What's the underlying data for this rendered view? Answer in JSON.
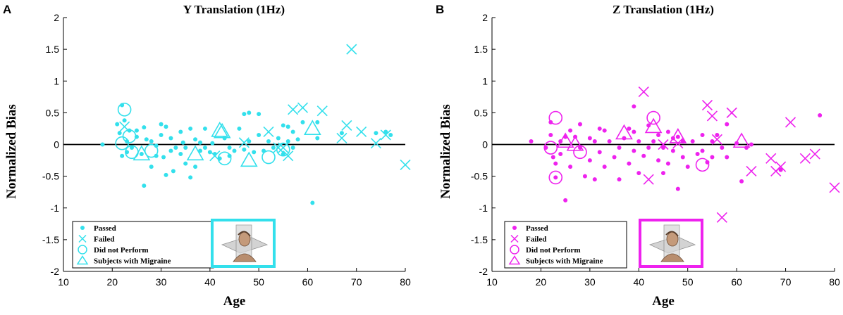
{
  "chart_data": [
    {
      "panel": "A",
      "type": "scatter",
      "title": "Y Translation (1Hz)",
      "xlabel": "Age",
      "ylabel": "Normalized Bias",
      "xlim": [
        10,
        80
      ],
      "ylim": [
        -2,
        2
      ],
      "xticks": [
        10,
        20,
        30,
        40,
        50,
        60,
        70,
        80
      ],
      "yticks": [
        2,
        1.5,
        1,
        0.5,
        0,
        -0.5,
        -1,
        -1.5,
        -2
      ],
      "color": "#33e0ec",
      "inset_image": "subject-head-axes-illustration",
      "legend": [
        "Passed",
        "Failed",
        "Did not Perform",
        "Subjects with Migraine"
      ],
      "series": [
        {
          "name": "Passed",
          "marker": "dot",
          "points": [
            [
              18,
              0.0
            ],
            [
              21,
              0.32
            ],
            [
              21.5,
              0.18
            ],
            [
              22,
              0.62
            ],
            [
              22,
              -0.18
            ],
            [
              22.5,
              0.38
            ],
            [
              23,
              0.05
            ],
            [
              23,
              -0.12
            ],
            [
              23.5,
              0.22
            ],
            [
              24,
              -0.05
            ],
            [
              25,
              0.22
            ],
            [
              25,
              0.12
            ],
            [
              26,
              -0.15
            ],
            [
              26.5,
              0.27
            ],
            [
              26.5,
              -0.65
            ],
            [
              27,
              0.08
            ],
            [
              28,
              -0.35
            ],
            [
              28,
              0.05
            ],
            [
              29,
              -0.02
            ],
            [
              29,
              -0.18
            ],
            [
              30,
              0.32
            ],
            [
              30,
              0.15
            ],
            [
              30.5,
              -0.2
            ],
            [
              31,
              -0.48
            ],
            [
              31,
              0.28
            ],
            [
              32,
              -0.1
            ],
            [
              32,
              0.1
            ],
            [
              32.5,
              -0.42
            ],
            [
              33,
              -0.05
            ],
            [
              34,
              0.2
            ],
            [
              34,
              -0.15
            ],
            [
              34.5,
              0.03
            ],
            [
              35,
              -0.05
            ],
            [
              35,
              -0.3
            ],
            [
              36,
              0.25
            ],
            [
              36,
              -0.52
            ],
            [
              37,
              0.08
            ],
            [
              37,
              -0.35
            ],
            [
              38,
              0.03
            ],
            [
              38,
              -0.1
            ],
            [
              39,
              -0.05
            ],
            [
              39,
              0.25
            ],
            [
              40,
              -0.12
            ],
            [
              40.5,
              0.02
            ],
            [
              41,
              -0.15
            ],
            [
              42,
              -0.22
            ],
            [
              43,
              0.1
            ],
            [
              44,
              -0.05
            ],
            [
              44,
              -0.18
            ],
            [
              45,
              -0.1
            ],
            [
              46,
              0.25
            ],
            [
              47,
              0.48
            ],
            [
              47,
              -0.08
            ],
            [
              48,
              0.05
            ],
            [
              48,
              0.5
            ],
            [
              49,
              -0.12
            ],
            [
              50,
              0.48
            ],
            [
              50,
              0.15
            ],
            [
              51,
              -0.1
            ],
            [
              52,
              0.05
            ],
            [
              53,
              -0.05
            ],
            [
              54,
              0.1
            ],
            [
              55,
              0.3
            ],
            [
              55,
              -0.15
            ],
            [
              56,
              0.28
            ],
            [
              56,
              0.05
            ],
            [
              57,
              0.2
            ],
            [
              57,
              -0.05
            ],
            [
              58,
              0.08
            ],
            [
              59,
              0.35
            ],
            [
              61,
              -0.92
            ],
            [
              62,
              0.1
            ],
            [
              62,
              0.35
            ],
            [
              67,
              0.18
            ],
            [
              74,
              0.18
            ],
            [
              76,
              0.2
            ],
            [
              77,
              0.15
            ]
          ]
        },
        {
          "name": "Failed",
          "marker": "x",
          "points": [
            [
              22.5,
              0.28
            ],
            [
              41,
              -0.18
            ],
            [
              47,
              0.03
            ],
            [
              52,
              0.2
            ],
            [
              54,
              -0.05
            ],
            [
              55,
              -0.05
            ],
            [
              56,
              -0.18
            ],
            [
              57,
              0.55
            ],
            [
              59,
              0.58
            ],
            [
              63,
              0.53
            ],
            [
              67,
              0.1
            ],
            [
              68,
              0.3
            ],
            [
              69,
              1.5
            ],
            [
              71,
              0.2
            ],
            [
              74,
              0.02
            ],
            [
              76,
              0.15
            ],
            [
              80,
              -0.32
            ]
          ]
        },
        {
          "name": "Did not Perform",
          "marker": "circle",
          "points": [
            [
              22.5,
              0.55
            ],
            [
              22,
              0.02
            ],
            [
              23.5,
              0.13
            ],
            [
              24,
              -0.12
            ],
            [
              28,
              -0.1
            ],
            [
              43,
              -0.22
            ],
            [
              52,
              -0.2
            ],
            [
              55,
              -0.08
            ]
          ]
        },
        {
          "name": "Subjects with Migraine",
          "marker": "triangle",
          "points": [
            [
              26,
              -0.15
            ],
            [
              37,
              -0.15
            ],
            [
              42,
              0.22
            ],
            [
              42.5,
              0.2
            ],
            [
              48,
              -0.25
            ],
            [
              61,
              0.25
            ]
          ]
        }
      ]
    },
    {
      "panel": "B",
      "type": "scatter",
      "title": "Z Translation (1Hz)",
      "xlabel": "Age",
      "ylabel": "Normalized Bias",
      "xlim": [
        10,
        80
      ],
      "ylim": [
        -2,
        2
      ],
      "xticks": [
        10,
        20,
        30,
        40,
        50,
        60,
        70,
        80
      ],
      "yticks": [
        2,
        1.5,
        1,
        0.5,
        0,
        -0.5,
        -1,
        -1.5,
        -2
      ],
      "color": "#ee22ee",
      "inset_image": "subject-head-axes-illustration",
      "legend": [
        "Passed",
        "Failed",
        "Did not Perform",
        "Subjects with Migraine"
      ],
      "series": [
        {
          "name": "Passed",
          "marker": "dot",
          "points": [
            [
              18,
              0.05
            ],
            [
              21,
              -0.05
            ],
            [
              22,
              0.35
            ],
            [
              22,
              0.15
            ],
            [
              22.5,
              -0.2
            ],
            [
              23,
              -0.3
            ],
            [
              23,
              -0.52
            ],
            [
              24,
              0.05
            ],
            [
              24,
              -0.15
            ],
            [
              25,
              -0.88
            ],
            [
              25,
              0.12
            ],
            [
              26,
              -0.35
            ],
            [
              26,
              0.22
            ],
            [
              27,
              0.12
            ],
            [
              28,
              0.32
            ],
            [
              28,
              -0.05
            ],
            [
              29,
              -0.5
            ],
            [
              30,
              0.1
            ],
            [
              30,
              -0.25
            ],
            [
              31,
              0.05
            ],
            [
              31,
              -0.55
            ],
            [
              32,
              -0.12
            ],
            [
              32,
              0.25
            ],
            [
              33,
              0.22
            ],
            [
              33,
              -0.35
            ],
            [
              34,
              0.05
            ],
            [
              35,
              -0.2
            ],
            [
              36,
              -0.05
            ],
            [
              36,
              -0.55
            ],
            [
              37,
              0.1
            ],
            [
              38,
              -0.3
            ],
            [
              38,
              0.25
            ],
            [
              39,
              0.2
            ],
            [
              39,
              -0.1
            ],
            [
              40,
              -0.45
            ],
            [
              40,
              0.05
            ],
            [
              41,
              -0.18
            ],
            [
              42,
              0.3
            ],
            [
              42,
              -0.05
            ],
            [
              43,
              0.05
            ],
            [
              44,
              -0.25
            ],
            [
              44,
              0.15
            ],
            [
              45,
              -0.05
            ],
            [
              45,
              -0.45
            ],
            [
              46,
              0.2
            ],
            [
              46,
              -0.3
            ],
            [
              47,
              0.1
            ],
            [
              47,
              -0.1
            ],
            [
              48,
              -0.7
            ],
            [
              48,
              0.12
            ],
            [
              49,
              -0.2
            ],
            [
              49,
              0.05
            ],
            [
              50,
              -0.35
            ],
            [
              51,
              0.05
            ],
            [
              52,
              -0.15
            ],
            [
              53,
              0.15
            ],
            [
              53,
              -0.1
            ],
            [
              54,
              -0.28
            ],
            [
              55,
              0.05
            ],
            [
              55,
              -0.2
            ],
            [
              56,
              0.15
            ],
            [
              57,
              -0.05
            ],
            [
              58,
              -0.2
            ],
            [
              58,
              0.32
            ],
            [
              60,
              0.02
            ],
            [
              61,
              -0.58
            ],
            [
              62,
              -0.05
            ],
            [
              63,
              0.0
            ],
            [
              69,
              -0.4
            ],
            [
              77,
              0.46
            ],
            [
              39,
              0.6
            ]
          ]
        },
        {
          "name": "Failed",
          "marker": "x",
          "points": [
            [
              41,
              0.83
            ],
            [
              42,
              -0.55
            ],
            [
              45,
              0.0
            ],
            [
              48,
              0.02
            ],
            [
              54,
              0.62
            ],
            [
              55,
              0.45
            ],
            [
              56,
              0.08
            ],
            [
              57,
              -1.15
            ],
            [
              59,
              0.5
            ],
            [
              63,
              -0.42
            ],
            [
              67,
              -0.22
            ],
            [
              68,
              -0.42
            ],
            [
              69,
              -0.35
            ],
            [
              71,
              0.35
            ],
            [
              74,
              -0.22
            ],
            [
              76,
              -0.15
            ],
            [
              80,
              -0.68
            ]
          ]
        },
        {
          "name": "Did not Perform",
          "marker": "circle",
          "points": [
            [
              23,
              0.42
            ],
            [
              23,
              -0.52
            ],
            [
              22,
              -0.05
            ],
            [
              28,
              -0.12
            ],
            [
              43,
              0.42
            ],
            [
              53,
              -0.32
            ]
          ]
        },
        {
          "name": "Subjects with Migraine",
          "marker": "triangle",
          "points": [
            [
              25,
              0.05
            ],
            [
              27,
              0.0
            ],
            [
              37,
              0.18
            ],
            [
              43,
              0.28
            ],
            [
              48,
              0.12
            ],
            [
              61,
              0.05
            ]
          ]
        }
      ]
    }
  ]
}
